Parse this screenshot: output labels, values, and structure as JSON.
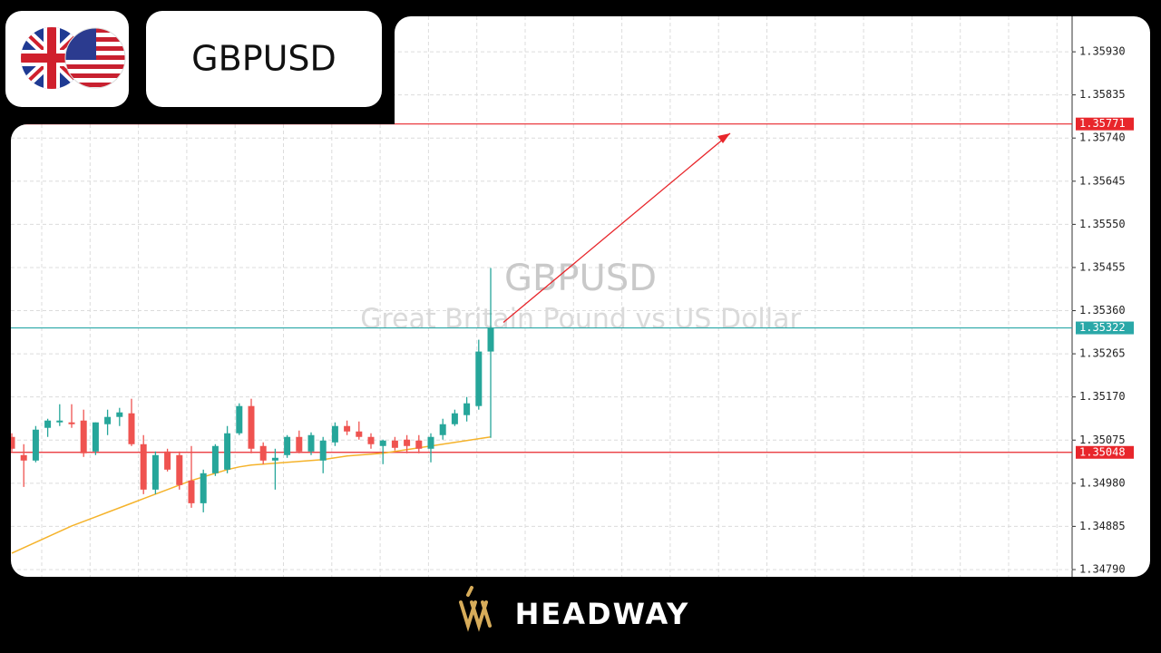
{
  "header": {
    "symbol": "GBPUSD"
  },
  "chart_data": {
    "type": "candlestick",
    "title": "GBPUSD",
    "subtitle": "Great Britain Pound vs US Dollar",
    "up_color": "#26a69a",
    "down_color": "#ef5350",
    "candles": {
      "open": [
        1.35082,
        1.35042,
        1.3503,
        1.35102,
        1.35114,
        1.35114,
        1.35118,
        1.3505,
        1.3511,
        1.35126,
        1.35134,
        1.35066,
        1.34966,
        1.3505,
        1.35042,
        1.34986,
        1.34936,
        1.35002,
        1.3501,
        1.3509,
        1.3515,
        1.35062,
        1.3503,
        1.35042,
        1.35082,
        1.3505,
        1.3503,
        1.3507,
        1.35106,
        1.35094,
        1.35082,
        1.35062,
        1.35074,
        1.35076,
        1.35074,
        1.35056,
        1.35086,
        1.3511,
        1.3513,
        1.3515,
        1.3527
      ],
      "high": [
        1.3509,
        1.35066,
        1.35106,
        1.35122,
        1.35154,
        1.35154,
        1.35142,
        1.35114,
        1.35142,
        1.35146,
        1.35166,
        1.35086,
        1.3505,
        1.35056,
        1.3505,
        1.35062,
        1.3501,
        1.35066,
        1.35106,
        1.35156,
        1.35166,
        1.3507,
        1.35056,
        1.35086,
        1.35096,
        1.35092,
        1.35082,
        1.35114,
        1.35118,
        1.35116,
        1.3509,
        1.35076,
        1.35082,
        1.35086,
        1.35086,
        1.3509,
        1.35122,
        1.35142,
        1.3517,
        1.35296,
        1.35454
      ],
      "low": [
        1.3505,
        1.34972,
        1.35026,
        1.35082,
        1.35106,
        1.35102,
        1.35038,
        1.35042,
        1.35086,
        1.35106,
        1.35062,
        1.34956,
        1.34956,
        1.35006,
        1.34966,
        1.34926,
        1.34916,
        1.34996,
        1.35002,
        1.35086,
        1.35046,
        1.35022,
        1.34966,
        1.35036,
        1.35046,
        1.35042,
        1.35002,
        1.35062,
        1.35086,
        1.35076,
        1.35056,
        1.35022,
        1.35052,
        1.35046,
        1.35046,
        1.35026,
        1.35076,
        1.35106,
        1.35116,
        1.35142,
        1.3508
      ],
      "close": [
        1.35056,
        1.3503,
        1.35098,
        1.35118,
        1.35118,
        1.3511,
        1.35046,
        1.35114,
        1.35126,
        1.35136,
        1.35066,
        1.34966,
        1.35042,
        1.3501,
        1.34976,
        1.34936,
        1.35002,
        1.35062,
        1.3509,
        1.3515,
        1.35056,
        1.3503,
        1.35036,
        1.35082,
        1.3505,
        1.35086,
        1.35074,
        1.35106,
        1.35094,
        1.35082,
        1.35066,
        1.35074,
        1.35058,
        1.35062,
        1.35056,
        1.35082,
        1.3511,
        1.35134,
        1.35156,
        1.3527,
        1.35322
      ]
    },
    "ma": {
      "color": "#f5b32b",
      "values": [
        1.34826,
        1.34838,
        1.3485,
        1.34862,
        1.34874,
        1.34886,
        1.34896,
        1.34906,
        1.34916,
        1.34926,
        1.34936,
        1.34946,
        1.34956,
        1.34966,
        1.34976,
        1.34986,
        1.34994,
        1.35002,
        1.3501,
        1.35016,
        1.3502,
        1.35022,
        1.35024,
        1.35026,
        1.35028,
        1.3503,
        1.35032,
        1.35036,
        1.3504,
        1.35042,
        1.35044,
        1.35046,
        1.3505,
        1.35054,
        1.35058,
        1.35062,
        1.35066,
        1.3507,
        1.35074,
        1.35078,
        1.35082
      ]
    },
    "levels": [
      {
        "value": 1.35771,
        "color": "#e8262b"
      },
      {
        "value": 1.35322,
        "color": "#2aa8a8"
      },
      {
        "value": 1.35048,
        "color": "#e8262b"
      }
    ],
    "ylim": [
      1.34774,
      1.36008
    ],
    "yticks": [
      {
        "value": 1.3593,
        "label": "1.35930"
      },
      1.35835,
      {
        "value": 1.3574,
        "label": "1.35740"
      },
      1.35645,
      {
        "value": 1.3555,
        "label": "1.35550"
      },
      1.35455,
      {
        "value": 1.3536,
        "label": "1.35360"
      },
      1.35265,
      {
        "value": 1.3517,
        "label": "1.35170"
      },
      1.35075,
      {
        "value": 1.3498,
        "label": "1.34980"
      },
      1.34885,
      {
        "value": 1.3479,
        "label": "1.34790"
      }
    ],
    "grid": true
  },
  "footer": {
    "brand": "HEADWAY"
  }
}
